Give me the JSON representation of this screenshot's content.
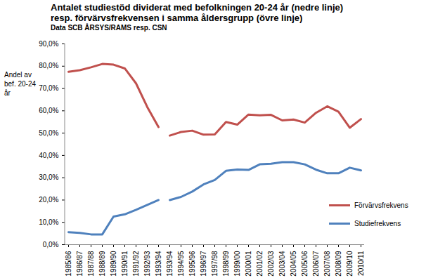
{
  "chart_data": {
    "type": "line",
    "title": "Antalet studiestöd dividerat med befolkningen 20-24 år (nedre linje)\nresp. förvärvsfrekvensen i samma åldersgrupp (övre linje)",
    "subtitle": "Data SCB ÅRSYS/RAMS  resp. CSN",
    "y_label": "Andel av bef. 20-24 år",
    "categories": [
      "1985/86",
      "1986/87",
      "1987/88",
      "1988/89",
      "1989/90",
      "1990/91",
      "1991/92",
      "1992/93",
      "1993/94",
      "1993/94",
      "1994/95",
      "1995/96",
      "1996/97",
      "1997/98",
      "1998/99",
      "1999/00",
      "2000/01",
      "2001/02",
      "2002/03",
      "2003/04",
      "2004/05",
      "2005/06",
      "2006/07",
      "2007/08",
      "2008/09",
      "2009/10",
      "2010/11"
    ],
    "series": [
      {
        "name": "Förvärvsfrekvens",
        "color": "#c0504d",
        "values": [
          77.5,
          78.2,
          79.5,
          81.0,
          80.7,
          79.0,
          72.3,
          61.7,
          52.7,
          48.9,
          50.5,
          51.1,
          49.3,
          49.4,
          55.0,
          53.8,
          58.3,
          58.0,
          58.2,
          55.7,
          56.1,
          54.7,
          59.1,
          62.0,
          59.6,
          52.4,
          56.3
        ]
      },
      {
        "name": "Studiefrekvens",
        "color": "#4f81bd",
        "values": [
          5.6,
          5.3,
          4.6,
          4.6,
          12.6,
          13.6,
          15.6,
          17.8,
          20.0,
          20.0,
          21.4,
          23.8,
          27.0,
          29.0,
          33.1,
          33.7,
          33.5,
          36.0,
          36.3,
          37.0,
          37.0,
          36.0,
          33.6,
          32.0,
          32.0,
          34.5,
          33.3
        ]
      }
    ],
    "ylim": [
      0,
      90
    ],
    "yticks": [
      {
        "value": 0,
        "label": "0,0%"
      },
      {
        "value": 10,
        "label": "10,0%"
      },
      {
        "value": 20,
        "label": "20,0%"
      },
      {
        "value": 30,
        "label": "30,0%"
      },
      {
        "value": 40,
        "label": "40,0%"
      },
      {
        "value": 50,
        "label": "50,0%"
      },
      {
        "value": 60,
        "label": "60,0%"
      },
      {
        "value": 70,
        "label": "70,0%"
      },
      {
        "value": 80,
        "label": "80,0%"
      },
      {
        "value": 90,
        "label": "90,0%"
      }
    ],
    "grid": false,
    "legend": "right"
  }
}
